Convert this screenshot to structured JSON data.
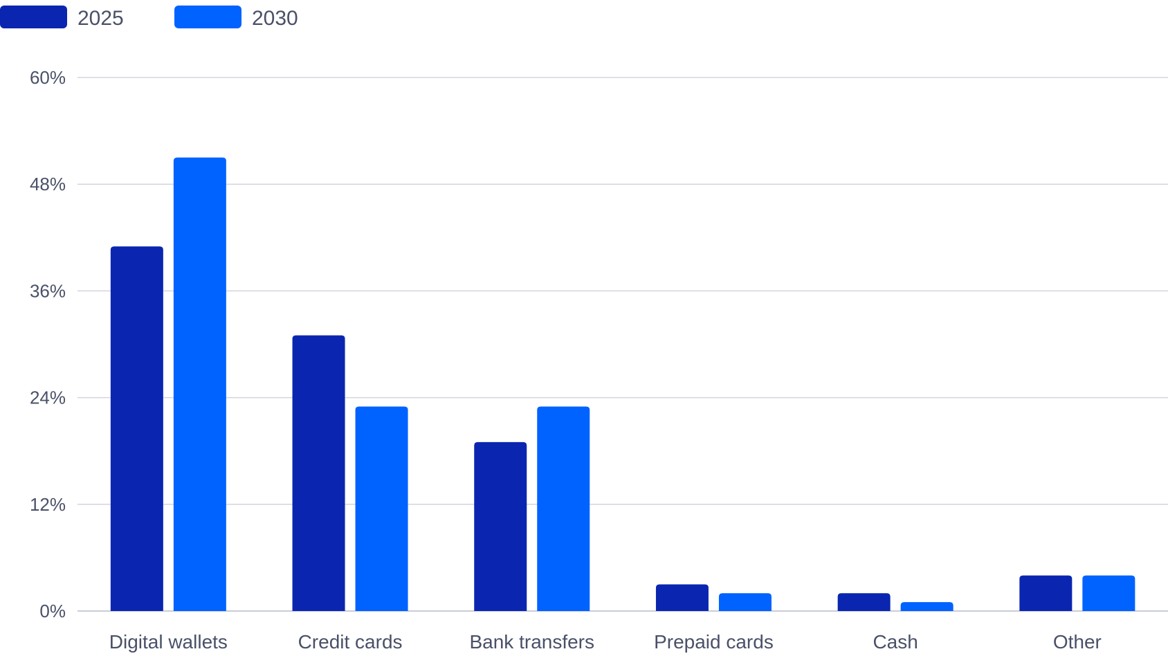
{
  "chart_data": {
    "type": "bar",
    "categories": [
      "Digital wallets",
      "Credit cards",
      "Bank transfers",
      "Prepaid cards",
      "Cash",
      "Other"
    ],
    "series": [
      {
        "name": "2025",
        "color": "#0a26b0",
        "values": [
          41,
          31,
          19,
          3,
          2,
          4
        ]
      },
      {
        "name": "2030",
        "color": "#0062ff",
        "values": [
          51,
          23,
          23,
          2,
          1,
          4
        ]
      }
    ],
    "yticks": [
      "0%",
      "12%",
      "24%",
      "36%",
      "48%",
      "60%"
    ],
    "ytick_values": [
      0,
      12,
      24,
      36,
      48,
      60
    ],
    "ylim": [
      0,
      60
    ],
    "title": "",
    "xlabel": "",
    "ylabel": "",
    "grid": true,
    "legend": "top-left"
  }
}
